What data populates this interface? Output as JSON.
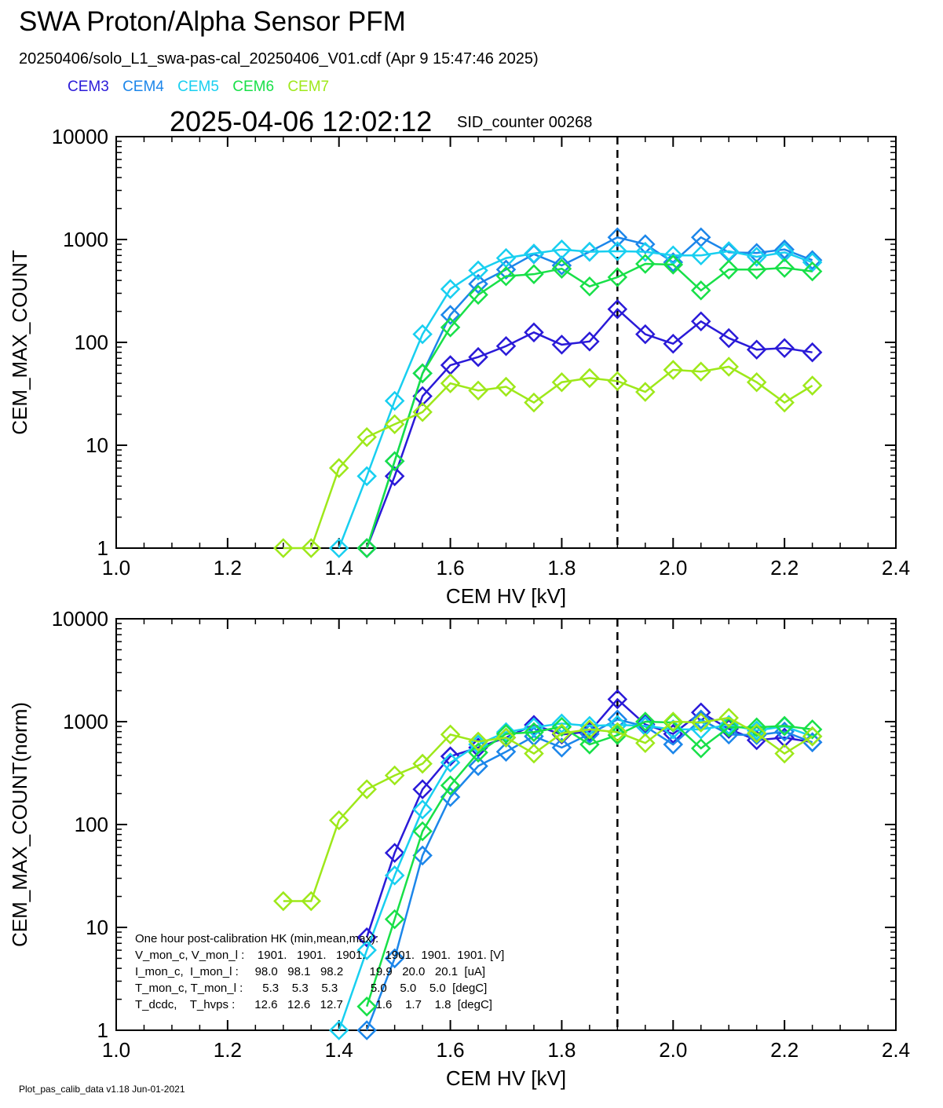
{
  "title": "SWA Proton/Alpha Sensor PFM",
  "file_line": "20250406/solo_L1_swa-pas-cal_20250406_V01.cdf  (Apr  9 15:47:46 2025)",
  "timestamp": "2025-04-06 12:02:12",
  "sid_counter": "SID_counter 00268",
  "footer": "Plot_pas_calib_data v1.18 Jun-01-2021",
  "colors": {
    "CEM3": "#2a1ad8",
    "CEM4": "#1c86ea",
    "CEM5": "#18cff0",
    "CEM6": "#18e048",
    "CEM7": "#9ee81a",
    "marker_line": "#000000"
  },
  "legend": [
    {
      "name": "CEM3",
      "color": "#2a1ad8"
    },
    {
      "name": "CEM4",
      "color": "#1c86ea"
    },
    {
      "name": "CEM5",
      "color": "#18cff0"
    },
    {
      "name": "CEM6",
      "color": "#18e048"
    },
    {
      "name": "CEM7",
      "color": "#9ee81a"
    }
  ],
  "hk": {
    "header": "One hour post-calibration HK (min,mean,max):",
    "rows": [
      "V_mon_c, V_mon_l :    1901.   1901.   1901.      1901.  1901.  1901. [V]",
      "I_mon_c,  I_mon_l :     98.0   98.1   98.2        19.9   20.0   20.1  [uA]",
      "T_mon_c, T_mon_l :      5.3    5.3    5.3          5.0    5.0    5.0  [degC]",
      "T_dcdc,    T_hvps :      12.6   12.6   12.7          1.6    1.7    1.8  [degC]"
    ]
  },
  "chart_data": [
    {
      "type": "line",
      "xlabel": "CEM HV [kV]",
      "ylabel": "CEM_MAX_COUNT",
      "xlim": [
        1.0,
        2.4
      ],
      "ylim": [
        1,
        10000
      ],
      "yscale": "log",
      "xticks": [
        "1.0",
        "1.2",
        "1.4",
        "1.6",
        "1.8",
        "2.0",
        "2.2",
        "2.4"
      ],
      "yticks": [
        "1",
        "10",
        "100",
        "1000",
        "10000"
      ],
      "vline_x": 1.9,
      "marker": "diamond",
      "x": [
        1.3,
        1.35,
        1.4,
        1.45,
        1.5,
        1.55,
        1.6,
        1.65,
        1.7,
        1.75,
        1.8,
        1.85,
        1.9,
        1.95,
        2.0,
        2.05,
        2.1,
        2.15,
        2.2,
        2.25
      ],
      "series": [
        {
          "name": "CEM3",
          "values": [
            null,
            null,
            null,
            1,
            5,
            30,
            60,
            72,
            92,
            125,
            95,
            102,
            210,
            120,
            97,
            160,
            110,
            85,
            88,
            80
          ]
        },
        {
          "name": "CEM4",
          "values": [
            null,
            null,
            null,
            1,
            7,
            50,
            185,
            370,
            510,
            720,
            560,
            760,
            1050,
            900,
            600,
            1050,
            750,
            740,
            800,
            630
          ]
        },
        {
          "name": "CEM5",
          "values": [
            null,
            null,
            1,
            5,
            27,
            120,
            330,
            500,
            660,
            730,
            800,
            760,
            770,
            760,
            700,
            700,
            770,
            680,
            750,
            600
          ]
        },
        {
          "name": "CEM6",
          "values": [
            null,
            null,
            null,
            1,
            7,
            50,
            140,
            290,
            440,
            460,
            520,
            350,
            430,
            580,
            570,
            320,
            510,
            510,
            530,
            490
          ]
        },
        {
          "name": "CEM7",
          "values": [
            1,
            1,
            6,
            12,
            16,
            21,
            40,
            34,
            37,
            26,
            41,
            45,
            42,
            33,
            54,
            52,
            58,
            41,
            26,
            38
          ]
        }
      ]
    },
    {
      "type": "line",
      "xlabel": "CEM HV [kV]",
      "ylabel": "CEM_MAX_COUNT(norm)",
      "xlim": [
        1.0,
        2.4
      ],
      "ylim": [
        1,
        10000
      ],
      "yscale": "log",
      "xticks": [
        "1.0",
        "1.2",
        "1.4",
        "1.6",
        "1.8",
        "2.0",
        "2.2",
        "2.4"
      ],
      "yticks": [
        "1",
        "10",
        "100",
        "1000",
        "10000"
      ],
      "vline_x": 1.9,
      "marker": "diamond",
      "x": [
        1.3,
        1.35,
        1.4,
        1.45,
        1.5,
        1.55,
        1.6,
        1.65,
        1.7,
        1.75,
        1.8,
        1.85,
        1.9,
        1.95,
        2.0,
        2.05,
        2.1,
        2.15,
        2.2,
        2.25
      ],
      "series": [
        {
          "name": "CEM3",
          "values": [
            null,
            null,
            null,
            8,
            53,
            220,
            460,
            560,
            700,
            930,
            750,
            800,
            1650,
            940,
            760,
            1230,
            850,
            660,
            700,
            630
          ]
        },
        {
          "name": "CEM4",
          "values": [
            null,
            null,
            null,
            1,
            5,
            50,
            185,
            370,
            510,
            720,
            560,
            760,
            1050,
            900,
            600,
            1050,
            750,
            740,
            800,
            630
          ]
        },
        {
          "name": "CEM5",
          "values": [
            null,
            null,
            1,
            6,
            32,
            140,
            400,
            600,
            790,
            880,
            960,
            910,
            930,
            910,
            840,
            840,
            930,
            820,
            900,
            720
          ]
        },
        {
          "name": "CEM6",
          "values": [
            null,
            null,
            null,
            1.7,
            12,
            86,
            240,
            500,
            760,
            790,
            890,
            600,
            740,
            1000,
            980,
            550,
            880,
            880,
            910,
            840
          ]
        },
        {
          "name": "CEM7",
          "values": [
            18,
            18,
            110,
            220,
            300,
            390,
            750,
            640,
            700,
            490,
            770,
            840,
            790,
            620,
            1000,
            980,
            1090,
            770,
            490,
            720
          ]
        }
      ]
    }
  ]
}
